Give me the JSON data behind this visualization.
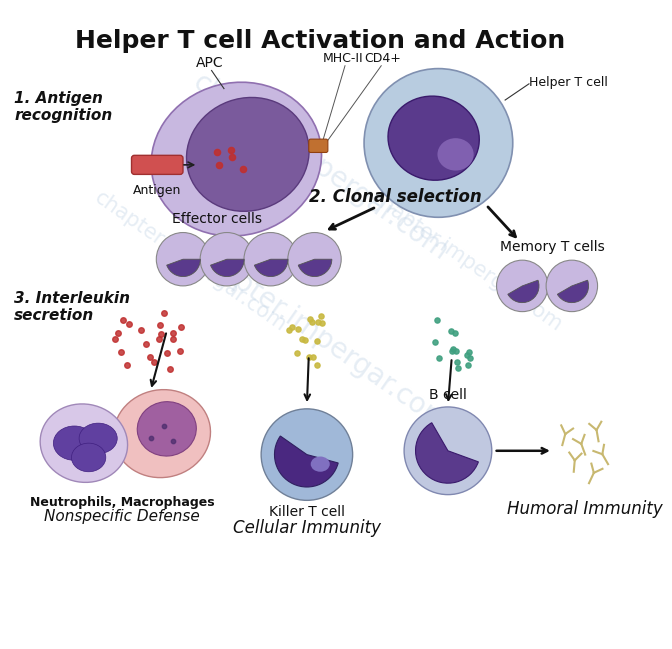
{
  "title": "Helper T cell Activation and Action",
  "bg_color": "#ffffff",
  "watermark": "chapter.impergar.com",
  "watermark_color": "#c8d8e8",
  "labels": {
    "title": "Helper T cell Activation and Action",
    "antigen_recognition": "1. Antigen\nrecognition",
    "clonal_selection": "2. Clonal selection",
    "interleukin_secretion": "3. Interleukin\nsecretion",
    "apc": "APC",
    "mhc2": "MHC-II",
    "cd4": "CD4+",
    "helper_t": "Helper T cell",
    "antigen": "Antigen",
    "effector_cells": "Effector cells",
    "memory_t": "Memory T cells",
    "neutrophils": "Neutrophils, Macrophages",
    "nonspecific": "Nonspecific Defense",
    "killer_t": "Killer T cell",
    "cellular": "Cellular Immunity",
    "b_cell": "B cell",
    "humoral": "Humoral Immunity"
  },
  "colors": {
    "cell_light_purple": "#c8b8e0",
    "cell_dark_purple": "#6a4a8c",
    "cell_nucleus_dark": "#4a2a6a",
    "light_blue_cell": "#b8cce0",
    "pink_cell": "#f0c0c0",
    "gray_cell": "#d0d0d0",
    "antigen_red": "#c04040",
    "arrow_dark": "#202020",
    "dot_red": "#c03030",
    "dot_yellow": "#c8b840",
    "dot_teal": "#40a080",
    "antibody_tan": "#c8b870",
    "neut_lobe": "#6040a0",
    "macro_nuc": "#a060a0",
    "macro_dot": "#503070"
  }
}
